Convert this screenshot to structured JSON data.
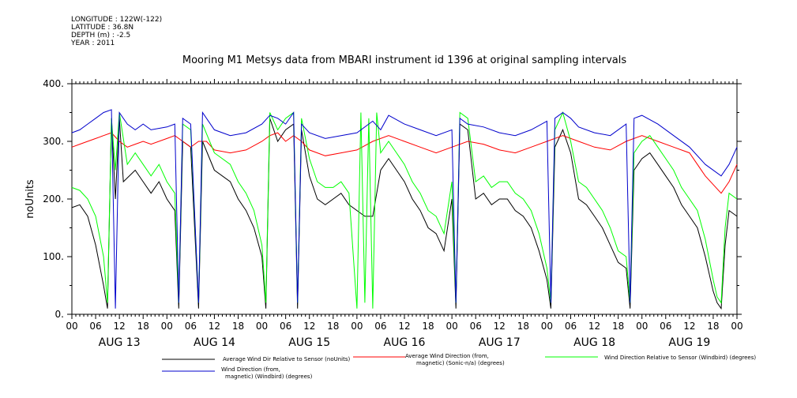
{
  "meta": {
    "longitude": "LONGITUDE : 122W(-122)",
    "latitude": "LATITUDE : 36.8N",
    "depth": "DEPTH (m) : -2.5",
    "year": "YEAR : 2011"
  },
  "chart_data": {
    "type": "line",
    "title": "Mooring M1 Metsys data from MBARI instrument id 1396 at original sampling intervals",
    "ylabel": "noUnits",
    "xlabel": "",
    "ylim": [
      0,
      400
    ],
    "y_ticks": [
      "0.",
      "100.",
      "200.",
      "300.",
      "400."
    ],
    "y_tick_values": [
      0,
      100,
      200,
      300,
      400
    ],
    "x_range_hours": [
      0,
      168
    ],
    "x_tick_labels": [
      "00",
      "06",
      "12",
      "18",
      "00",
      "06",
      "12",
      "18",
      "00",
      "06",
      "12",
      "18",
      "00",
      "06",
      "12",
      "18",
      "00",
      "06",
      "12",
      "18",
      "00",
      "06",
      "12",
      "18",
      "00",
      "06",
      "12",
      "18",
      "00"
    ],
    "day_labels": [
      "AUG 13",
      "AUG 14",
      "AUG 15",
      "AUG 16",
      "AUG 17",
      "AUG 18",
      "AUG 19"
    ],
    "grid": false,
    "legend_position": "bottom",
    "series": [
      {
        "name": "Average Wind Dir Relative to Sensor (noUnits)",
        "color": "#000000",
        "points": [
          [
            0,
            185
          ],
          [
            2,
            190
          ],
          [
            4,
            170
          ],
          [
            6,
            120
          ],
          [
            8,
            50
          ],
          [
            9,
            10
          ],
          [
            10,
            340
          ],
          [
            11,
            200
          ],
          [
            12,
            340
          ],
          [
            13,
            230
          ],
          [
            16,
            250
          ],
          [
            18,
            230
          ],
          [
            20,
            210
          ],
          [
            22,
            230
          ],
          [
            24,
            200
          ],
          [
            26,
            180
          ],
          [
            27,
            10
          ],
          [
            28,
            300
          ],
          [
            30,
            290
          ],
          [
            32,
            10
          ],
          [
            33,
            300
          ],
          [
            36,
            250
          ],
          [
            40,
            230
          ],
          [
            42,
            200
          ],
          [
            44,
            180
          ],
          [
            46,
            150
          ],
          [
            48,
            100
          ],
          [
            49,
            10
          ],
          [
            50,
            340
          ],
          [
            52,
            300
          ],
          [
            54,
            320
          ],
          [
            56,
            330
          ],
          [
            57,
            10
          ],
          [
            58,
            320
          ],
          [
            60,
            240
          ],
          [
            62,
            200
          ],
          [
            64,
            190
          ],
          [
            66,
            200
          ],
          [
            68,
            210
          ],
          [
            70,
            190
          ],
          [
            72,
            180
          ],
          [
            74,
            170
          ],
          [
            76,
            170
          ],
          [
            78,
            250
          ],
          [
            80,
            270
          ],
          [
            82,
            250
          ],
          [
            84,
            230
          ],
          [
            86,
            200
          ],
          [
            88,
            180
          ],
          [
            90,
            150
          ],
          [
            92,
            140
          ],
          [
            94,
            110
          ],
          [
            96,
            200
          ],
          [
            97,
            10
          ],
          [
            98,
            330
          ],
          [
            100,
            320
          ],
          [
            102,
            200
          ],
          [
            104,
            210
          ],
          [
            106,
            190
          ],
          [
            108,
            200
          ],
          [
            110,
            200
          ],
          [
            112,
            180
          ],
          [
            114,
            170
          ],
          [
            116,
            150
          ],
          [
            118,
            110
          ],
          [
            120,
            60
          ],
          [
            121,
            10
          ],
          [
            122,
            290
          ],
          [
            124,
            320
          ],
          [
            126,
            280
          ],
          [
            128,
            200
          ],
          [
            130,
            190
          ],
          [
            132,
            170
          ],
          [
            134,
            150
          ],
          [
            136,
            120
          ],
          [
            138,
            90
          ],
          [
            140,
            80
          ],
          [
            141,
            10
          ],
          [
            142,
            250
          ],
          [
            144,
            270
          ],
          [
            146,
            280
          ],
          [
            148,
            260
          ],
          [
            150,
            240
          ],
          [
            152,
            220
          ],
          [
            154,
            190
          ],
          [
            156,
            170
          ],
          [
            158,
            150
          ],
          [
            160,
            100
          ],
          [
            162,
            40
          ],
          [
            163,
            20
          ],
          [
            164,
            10
          ],
          [
            165,
            120
          ],
          [
            166,
            180
          ],
          [
            168,
            170
          ]
        ]
      },
      {
        "name": "Average Wind Direction (from, magnetic) (Sonic-n/a) (degrees)",
        "color": "#ff0000",
        "points": [
          [
            0,
            290
          ],
          [
            2,
            295
          ],
          [
            4,
            300
          ],
          [
            6,
            305
          ],
          [
            8,
            310
          ],
          [
            10,
            315
          ],
          [
            12,
            300
          ],
          [
            14,
            290
          ],
          [
            16,
            295
          ],
          [
            18,
            300
          ],
          [
            20,
            295
          ],
          [
            24,
            305
          ],
          [
            26,
            310
          ],
          [
            28,
            300
          ],
          [
            30,
            290
          ],
          [
            32,
            300
          ],
          [
            34,
            300
          ],
          [
            36,
            285
          ],
          [
            40,
            280
          ],
          [
            44,
            285
          ],
          [
            48,
            300
          ],
          [
            50,
            310
          ],
          [
            52,
            315
          ],
          [
            54,
            300
          ],
          [
            56,
            310
          ],
          [
            58,
            300
          ],
          [
            60,
            285
          ],
          [
            64,
            275
          ],
          [
            68,
            280
          ],
          [
            72,
            285
          ],
          [
            76,
            300
          ],
          [
            80,
            310
          ],
          [
            84,
            300
          ],
          [
            88,
            290
          ],
          [
            92,
            280
          ],
          [
            96,
            290
          ],
          [
            100,
            300
          ],
          [
            104,
            295
          ],
          [
            108,
            285
          ],
          [
            112,
            280
          ],
          [
            116,
            290
          ],
          [
            120,
            300
          ],
          [
            124,
            310
          ],
          [
            128,
            300
          ],
          [
            132,
            290
          ],
          [
            136,
            285
          ],
          [
            140,
            300
          ],
          [
            144,
            310
          ],
          [
            148,
            300
          ],
          [
            152,
            290
          ],
          [
            156,
            280
          ],
          [
            160,
            240
          ],
          [
            164,
            210
          ],
          [
            166,
            230
          ],
          [
            168,
            260
          ]
        ]
      },
      {
        "name": "Wind Direction Relative to Sensor (Windbird) (degrees)",
        "color": "#00ff00",
        "points": [
          [
            0,
            220
          ],
          [
            2,
            215
          ],
          [
            4,
            200
          ],
          [
            6,
            170
          ],
          [
            8,
            100
          ],
          [
            9,
            20
          ],
          [
            10,
            340
          ],
          [
            11,
            250
          ],
          [
            12,
            350
          ],
          [
            14,
            260
          ],
          [
            16,
            280
          ],
          [
            18,
            260
          ],
          [
            20,
            240
          ],
          [
            22,
            260
          ],
          [
            24,
            230
          ],
          [
            26,
            210
          ],
          [
            27,
            20
          ],
          [
            28,
            330
          ],
          [
            30,
            320
          ],
          [
            32,
            20
          ],
          [
            33,
            330
          ],
          [
            36,
            280
          ],
          [
            40,
            260
          ],
          [
            42,
            230
          ],
          [
            44,
            210
          ],
          [
            46,
            180
          ],
          [
            48,
            120
          ],
          [
            49,
            20
          ],
          [
            50,
            350
          ],
          [
            52,
            320
          ],
          [
            54,
            340
          ],
          [
            56,
            350
          ],
          [
            57,
            20
          ],
          [
            58,
            340
          ],
          [
            60,
            270
          ],
          [
            62,
            230
          ],
          [
            64,
            220
          ],
          [
            66,
            220
          ],
          [
            68,
            230
          ],
          [
            70,
            210
          ],
          [
            72,
            10
          ],
          [
            73,
            350
          ],
          [
            74,
            20
          ],
          [
            75,
            340
          ],
          [
            76,
            10
          ],
          [
            77,
            350
          ],
          [
            78,
            280
          ],
          [
            80,
            300
          ],
          [
            82,
            280
          ],
          [
            84,
            260
          ],
          [
            86,
            230
          ],
          [
            88,
            210
          ],
          [
            90,
            180
          ],
          [
            92,
            170
          ],
          [
            94,
            140
          ],
          [
            96,
            230
          ],
          [
            97,
            20
          ],
          [
            98,
            350
          ],
          [
            100,
            340
          ],
          [
            102,
            230
          ],
          [
            104,
            240
          ],
          [
            106,
            220
          ],
          [
            108,
            230
          ],
          [
            110,
            230
          ],
          [
            112,
            210
          ],
          [
            114,
            200
          ],
          [
            116,
            180
          ],
          [
            118,
            140
          ],
          [
            120,
            80
          ],
          [
            121,
            20
          ],
          [
            122,
            320
          ],
          [
            124,
            350
          ],
          [
            126,
            300
          ],
          [
            128,
            230
          ],
          [
            130,
            220
          ],
          [
            132,
            200
          ],
          [
            134,
            180
          ],
          [
            136,
            150
          ],
          [
            138,
            110
          ],
          [
            140,
            100
          ],
          [
            141,
            20
          ],
          [
            142,
            280
          ],
          [
            144,
            300
          ],
          [
            146,
            310
          ],
          [
            148,
            290
          ],
          [
            150,
            270
          ],
          [
            152,
            250
          ],
          [
            154,
            220
          ],
          [
            156,
            200
          ],
          [
            158,
            180
          ],
          [
            160,
            130
          ],
          [
            162,
            60
          ],
          [
            163,
            30
          ],
          [
            164,
            20
          ],
          [
            165,
            150
          ],
          [
            166,
            210
          ],
          [
            168,
            200
          ]
        ]
      },
      {
        "name": "Wind Direction (from, magnetic) (Windbird) (degrees)",
        "color": "#0000cc",
        "points": [
          [
            0,
            315
          ],
          [
            2,
            320
          ],
          [
            4,
            330
          ],
          [
            6,
            340
          ],
          [
            8,
            350
          ],
          [
            10,
            355
          ],
          [
            11,
            10
          ],
          [
            12,
            350
          ],
          [
            14,
            330
          ],
          [
            16,
            320
          ],
          [
            18,
            330
          ],
          [
            20,
            320
          ],
          [
            24,
            325
          ],
          [
            26,
            330
          ],
          [
            27,
            20
          ],
          [
            28,
            340
          ],
          [
            30,
            330
          ],
          [
            32,
            20
          ],
          [
            33,
            350
          ],
          [
            36,
            320
          ],
          [
            40,
            310
          ],
          [
            44,
            315
          ],
          [
            48,
            330
          ],
          [
            50,
            345
          ],
          [
            52,
            340
          ],
          [
            54,
            330
          ],
          [
            56,
            350
          ],
          [
            57,
            20
          ],
          [
            58,
            330
          ],
          [
            60,
            315
          ],
          [
            64,
            305
          ],
          [
            68,
            310
          ],
          [
            72,
            315
          ],
          [
            76,
            335
          ],
          [
            78,
            320
          ],
          [
            80,
            345
          ],
          [
            84,
            330
          ],
          [
            88,
            320
          ],
          [
            92,
            310
          ],
          [
            96,
            320
          ],
          [
            97,
            20
          ],
          [
            98,
            340
          ],
          [
            100,
            330
          ],
          [
            104,
            325
          ],
          [
            108,
            315
          ],
          [
            112,
            310
          ],
          [
            116,
            320
          ],
          [
            120,
            335
          ],
          [
            121,
            20
          ],
          [
            122,
            340
          ],
          [
            124,
            350
          ],
          [
            126,
            340
          ],
          [
            128,
            325
          ],
          [
            132,
            315
          ],
          [
            136,
            310
          ],
          [
            140,
            330
          ],
          [
            141,
            20
          ],
          [
            142,
            340
          ],
          [
            144,
            345
          ],
          [
            148,
            330
          ],
          [
            152,
            310
          ],
          [
            156,
            290
          ],
          [
            160,
            260
          ],
          [
            164,
            240
          ],
          [
            166,
            260
          ],
          [
            168,
            290
          ]
        ]
      }
    ]
  }
}
